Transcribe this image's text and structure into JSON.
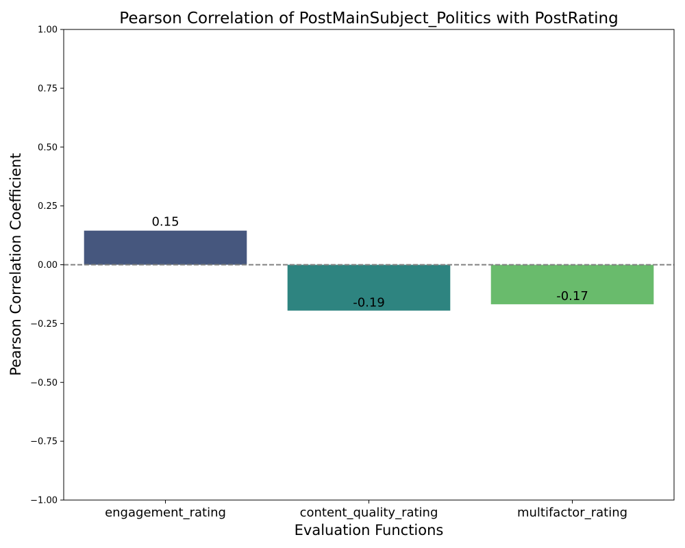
{
  "chart_data": {
    "type": "bar",
    "title": "Pearson Correlation of PostMainSubject_Politics   with PostRating",
    "xlabel": "Evaluation Functions",
    "ylabel": "Pearson Correlation Coefficient",
    "categories": [
      "engagement_rating",
      "content_quality_rating",
      "multifactor_rating"
    ],
    "values": [
      0.145,
      -0.195,
      -0.168
    ],
    "data_labels": [
      "0.15",
      "-0.19",
      "-0.17"
    ],
    "colors": [
      "#46577e",
      "#2e8480",
      "#69bb6c"
    ],
    "ylim": [
      -1.0,
      1.0
    ],
    "yticks": [
      -1.0,
      -0.75,
      -0.5,
      -0.25,
      0.0,
      0.25,
      0.5,
      0.75,
      1.0
    ],
    "ytick_labels": [
      "−1.00",
      "−0.75",
      "−0.50",
      "−0.25",
      "0.00",
      "0.25",
      "0.50",
      "0.75",
      "1.00"
    ],
    "reference_line": {
      "y": 0,
      "style": "dashed",
      "color": "#808080"
    },
    "grid": false,
    "legend": false
  }
}
